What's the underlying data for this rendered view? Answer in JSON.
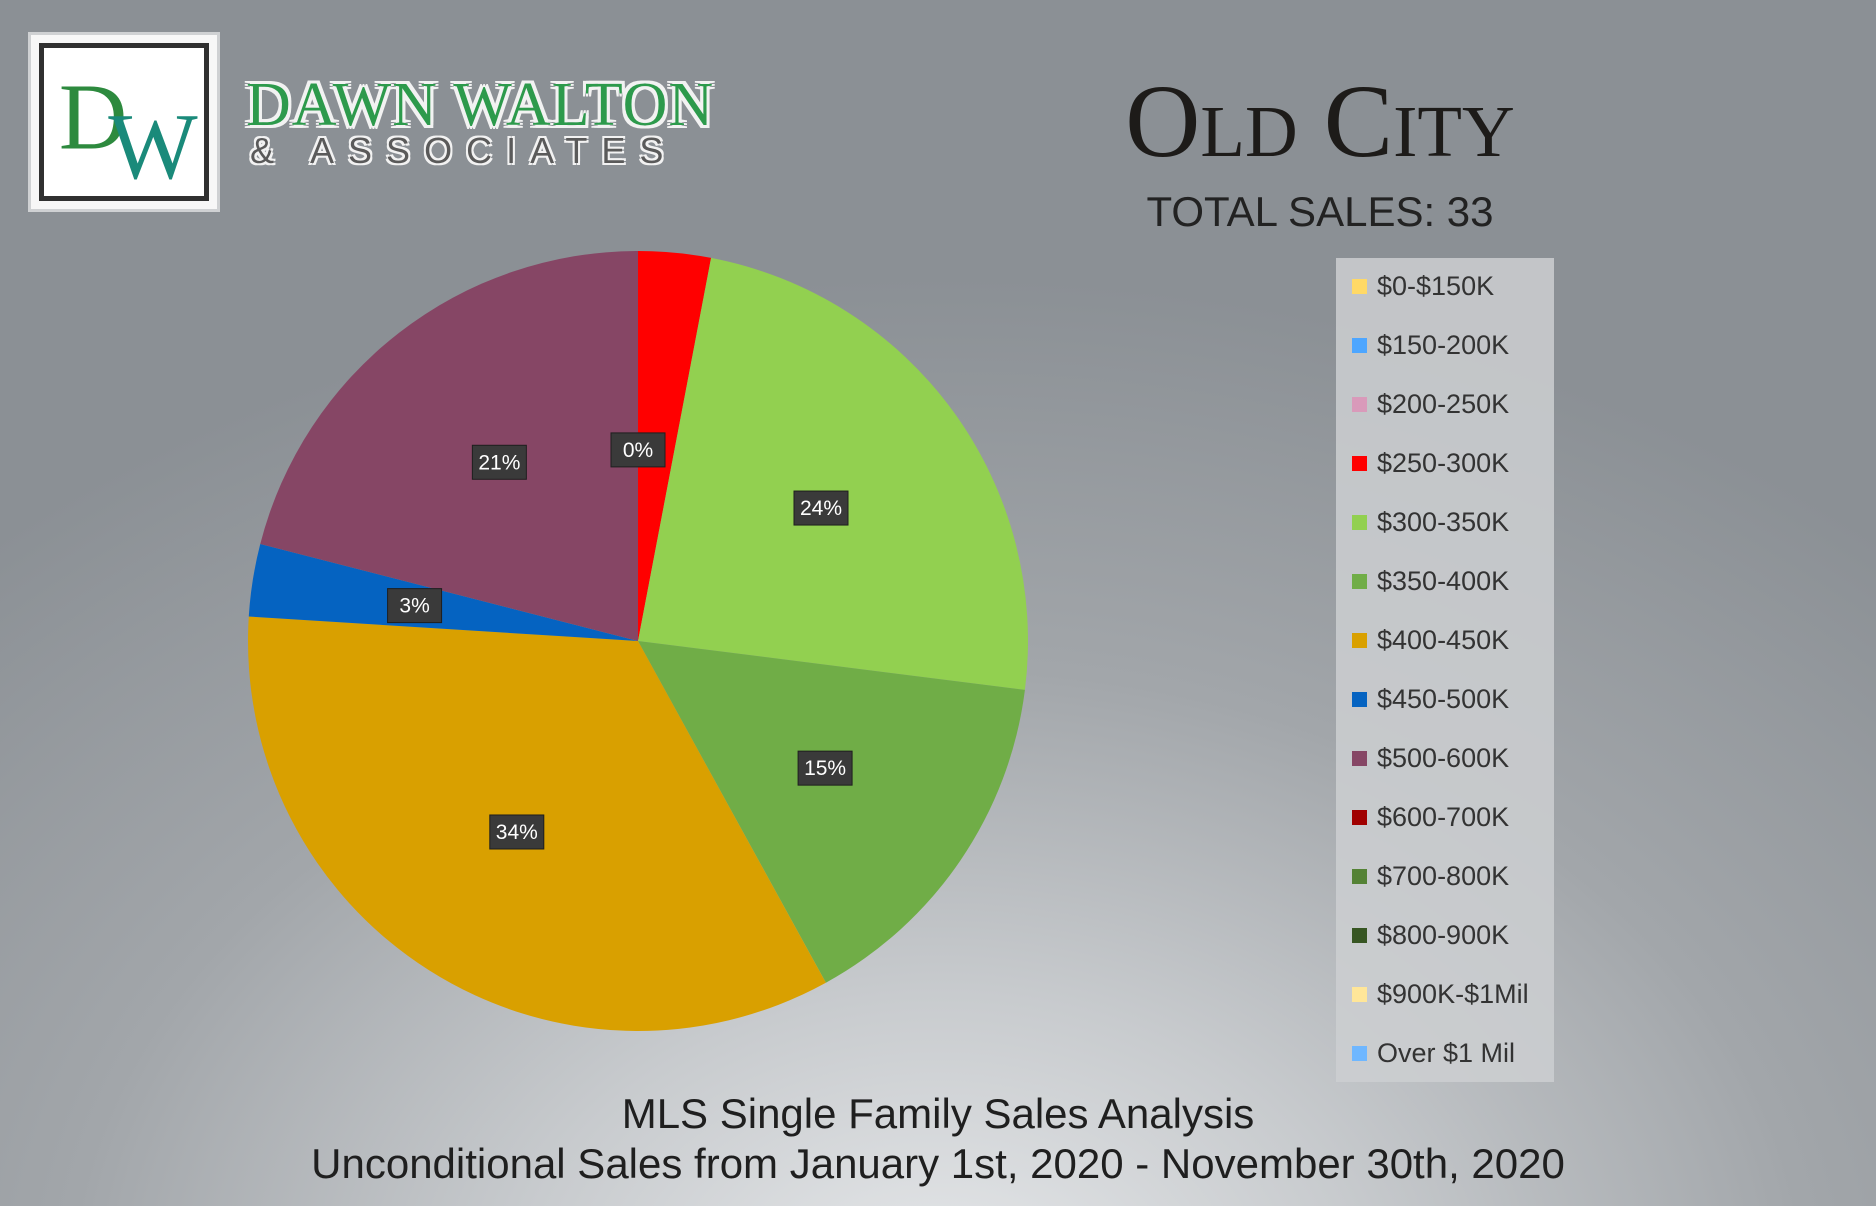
{
  "brand": {
    "logo_letters": "DW",
    "name": "DAWN WALTON",
    "tagline": "& ASSOCIATES"
  },
  "header": {
    "title": "Old City",
    "total_sales": "TOTAL SALES: 33"
  },
  "footer": {
    "title": "MLS Single Family Sales Analysis",
    "subtitle": "Unconditional Sales from January 1st, 2020 - November 30th, 2020"
  },
  "chart_data": {
    "type": "pie",
    "title": "",
    "start_angle_deg": 0,
    "direction": "clockwise",
    "legend_position": "right",
    "slices": [
      {
        "label": "$0-$150K",
        "value": 0,
        "color": "#ffd966",
        "data_label": ""
      },
      {
        "label": "$150-200K",
        "value": 0,
        "color": "#4da6ff",
        "data_label": ""
      },
      {
        "label": "$200-250K",
        "value": 0,
        "color": "#d99aba",
        "data_label": "0%"
      },
      {
        "label": "$250-300K",
        "value": 3,
        "color": "#ff0000",
        "data_label": ""
      },
      {
        "label": "$300-350K",
        "value": 24,
        "color": "#92d050",
        "data_label": "24%"
      },
      {
        "label": "$350-400K",
        "value": 15,
        "color": "#70ad47",
        "data_label": "15%"
      },
      {
        "label": "$400-450K",
        "value": 34,
        "color": "#d9a000",
        "data_label": "34%"
      },
      {
        "label": "$450-500K",
        "value": 3,
        "color": "#0563c1",
        "data_label": "3%"
      },
      {
        "label": "$500-600K",
        "value": 21,
        "color": "#864665",
        "data_label": "21%"
      },
      {
        "label": "$600-700K",
        "value": 0,
        "color": "#a00000",
        "data_label": ""
      },
      {
        "label": "$700-800K",
        "value": 0,
        "color": "#548235",
        "data_label": ""
      },
      {
        "label": "$800-900K",
        "value": 0,
        "color": "#375623",
        "data_label": ""
      },
      {
        "label": "$900K-$1Mil",
        "value": 0,
        "color": "#ffe699",
        "data_label": ""
      },
      {
        "label": "Over $1 Mil",
        "value": 0,
        "color": "#6fb7ff",
        "data_label": ""
      }
    ]
  }
}
